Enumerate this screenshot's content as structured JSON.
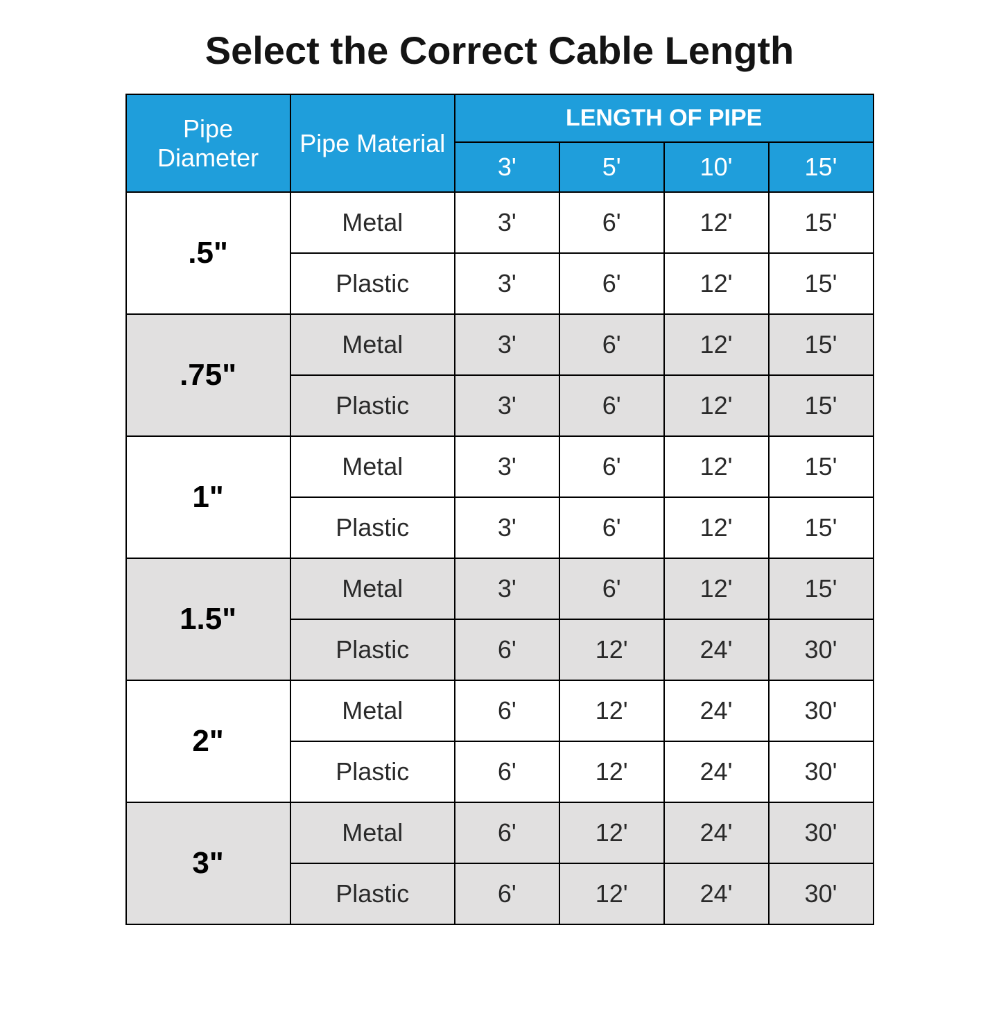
{
  "title": "Select the Correct Cable Length",
  "headers": {
    "pipe_diameter": "Pipe Diameter",
    "pipe_material": "Pipe Material",
    "length_of_pipe": "LENGTH OF PIPE",
    "lengths": [
      "3'",
      "5'",
      "10'",
      "15'"
    ]
  },
  "colors": {
    "header_bg": "#1f9edb",
    "header_text": "#ffffff",
    "border": "#000000",
    "shade_bg": "#e1e0e0",
    "white_bg": "#ffffff",
    "title_color": "#141414",
    "body_text": "#2a2a2a"
  },
  "typography": {
    "title_fontsize": 56,
    "title_weight": 900,
    "header_fontsize": 36,
    "header_top_fontsize": 34,
    "diameter_fontsize": 44,
    "diameter_weight": 900,
    "cell_fontsize": 36
  },
  "groups": [
    {
      "diameter": ".5\"",
      "shaded": false,
      "rows": [
        {
          "material": "Metal",
          "values": [
            "3'",
            "6'",
            "12'",
            "15'"
          ]
        },
        {
          "material": "Plastic",
          "values": [
            "3'",
            "6'",
            "12'",
            "15'"
          ]
        }
      ]
    },
    {
      "diameter": ".75\"",
      "shaded": true,
      "rows": [
        {
          "material": "Metal",
          "values": [
            "3'",
            "6'",
            "12'",
            "15'"
          ]
        },
        {
          "material": "Plastic",
          "values": [
            "3'",
            "6'",
            "12'",
            "15'"
          ]
        }
      ]
    },
    {
      "diameter": "1\"",
      "shaded": false,
      "rows": [
        {
          "material": "Metal",
          "values": [
            "3'",
            "6'",
            "12'",
            "15'"
          ]
        },
        {
          "material": "Plastic",
          "values": [
            "3'",
            "6'",
            "12'",
            "15'"
          ]
        }
      ]
    },
    {
      "diameter": "1.5\"",
      "shaded": true,
      "rows": [
        {
          "material": "Metal",
          "values": [
            "3'",
            "6'",
            "12'",
            "15'"
          ]
        },
        {
          "material": "Plastic",
          "values": [
            "6'",
            "12'",
            "24'",
            "30'"
          ]
        }
      ]
    },
    {
      "diameter": "2\"",
      "shaded": false,
      "rows": [
        {
          "material": "Metal",
          "values": [
            "6'",
            "12'",
            "24'",
            "30'"
          ]
        },
        {
          "material": "Plastic",
          "values": [
            "6'",
            "12'",
            "24'",
            "30'"
          ]
        }
      ]
    },
    {
      "diameter": "3\"",
      "shaded": true,
      "rows": [
        {
          "material": "Metal",
          "values": [
            "6'",
            "12'",
            "24'",
            "30'"
          ]
        },
        {
          "material": "Plastic",
          "values": [
            "6'",
            "12'",
            "24'",
            "30'"
          ]
        }
      ]
    }
  ]
}
